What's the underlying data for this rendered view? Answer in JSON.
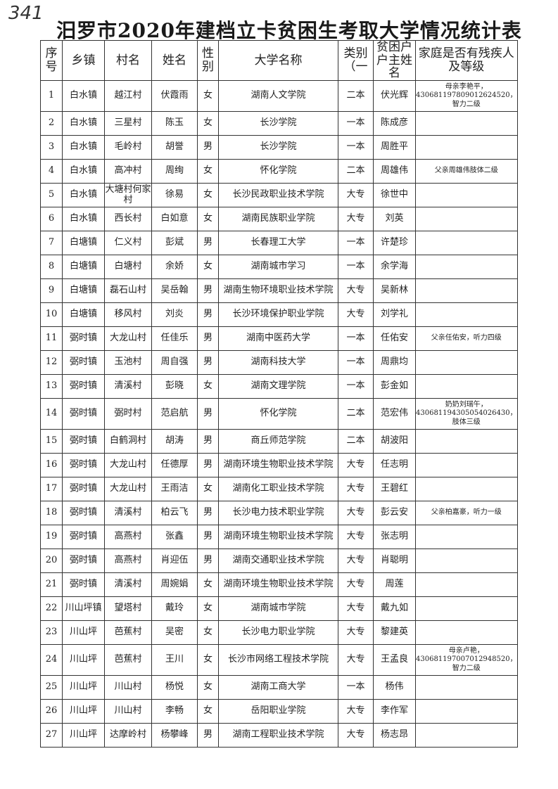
{
  "handwritten_page_no": "341",
  "title": "汨罗市2020年建档立卡贫困生考取大学情况统计表",
  "headers": [
    "序号",
    "乡镇",
    "村名",
    "姓名",
    "性别",
    "大学名称",
    "类别（一",
    "贫困户户主姓名",
    "家庭是否有残疾人及等级"
  ],
  "rows": [
    [
      "1",
      "白水镇",
      "越江村",
      "伏霞雨",
      "女",
      "湖南人文学院",
      "二本",
      "伏光辉",
      "母亲李艳平，430681197809012624520，智力二级"
    ],
    [
      "2",
      "白水镇",
      "三星村",
      "陈玉",
      "女",
      "长沙学院",
      "一本",
      "陈成彦",
      ""
    ],
    [
      "3",
      "白水镇",
      "毛岭村",
      "胡誉",
      "男",
      "长沙学院",
      "一本",
      "周胜平",
      ""
    ],
    [
      "4",
      "白水镇",
      "高冲村",
      "周绚",
      "女",
      "怀化学院",
      "二本",
      "周雄伟",
      "父亲周雄伟肢体二级"
    ],
    [
      "5",
      "白水镇",
      "大塘村何家村",
      "徐易",
      "女",
      "长沙民政职业技术学院",
      "大专",
      "徐世中",
      ""
    ],
    [
      "6",
      "白水镇",
      "西长村",
      "白如意",
      "女",
      "湖南民族职业学院",
      "大专",
      "刘英",
      ""
    ],
    [
      "7",
      "白塘镇",
      "仁义村",
      "彭斌",
      "男",
      "长春理工大学",
      "一本",
      "许楚珍",
      ""
    ],
    [
      "8",
      "白塘镇",
      "白塘村",
      "余娇",
      "女",
      "湖南城市学习",
      "一本",
      "余学海",
      ""
    ],
    [
      "9",
      "白塘镇",
      "磊石山村",
      "吴岳翰",
      "男",
      "湖南生物环境职业技术学院",
      "大专",
      "吴新林",
      ""
    ],
    [
      "10",
      "白塘镇",
      "移风村",
      "刘炎",
      "男",
      "长沙环境保护职业学院",
      "大专",
      "刘学礼",
      ""
    ],
    [
      "11",
      "弼时镇",
      "大龙山村",
      "任佳乐",
      "男",
      "湖南中医药大学",
      "一本",
      "任佑安",
      "父亲任佑安，听力四级"
    ],
    [
      "12",
      "弼时镇",
      "玉池村",
      "周自强",
      "男",
      "湖南科技大学",
      "一本",
      "周鼎均",
      ""
    ],
    [
      "13",
      "弼时镇",
      "清溪村",
      "彭晓",
      "女",
      "湖南文理学院",
      "一本",
      "彭金如",
      ""
    ],
    [
      "14",
      "弼时镇",
      "弼时村",
      "范启航",
      "男",
      "怀化学院",
      "二本",
      "范宏伟",
      "奶奶刘瑞午，430681194305054026430，肢体三级"
    ],
    [
      "15",
      "弼时镇",
      "白鹤洞村",
      "胡涛",
      "男",
      "商丘师范学院",
      "二本",
      "胡波阳",
      ""
    ],
    [
      "16",
      "弼时镇",
      "大龙山村",
      "任德厚",
      "男",
      "湖南环境生物职业技术学院",
      "大专",
      "任志明",
      ""
    ],
    [
      "17",
      "弼时镇",
      "大龙山村",
      "王雨洁",
      "女",
      "湖南化工职业技术学院",
      "大专",
      "王碧红",
      ""
    ],
    [
      "18",
      "弼时镇",
      "清溪村",
      "柏云飞",
      "男",
      "长沙电力技术职业学院",
      "大专",
      "彭云安",
      "父亲柏嘉豪，听力一级"
    ],
    [
      "19",
      "弼时镇",
      "高燕村",
      "张鑫",
      "男",
      "湖南环境生物职业技术学院",
      "大专",
      "张志明",
      ""
    ],
    [
      "20",
      "弼时镇",
      "高燕村",
      "肖迎伍",
      "男",
      "湖南交通职业技术学院",
      "大专",
      "肖聪明",
      ""
    ],
    [
      "21",
      "弼时镇",
      "清溪村",
      "周婉娟",
      "女",
      "湖南环境生物职业技术学院",
      "大专",
      "周莲",
      ""
    ],
    [
      "22",
      "川山坪镇",
      "望塔村",
      "戴玲",
      "女",
      "湖南城市学院",
      "大专",
      "戴九如",
      ""
    ],
    [
      "23",
      "川山坪",
      "芭蕉村",
      "吴密",
      "女",
      "长沙电力职业学院",
      "大专",
      "黎建英",
      ""
    ],
    [
      "24",
      "川山坪",
      "芭蕉村",
      "王川",
      "女",
      "长沙市网络工程技术学院",
      "大专",
      "王孟良",
      "母亲卢艳，430681197007012948520，智力二级"
    ],
    [
      "25",
      "川山坪",
      "川山村",
      "杨悦",
      "女",
      "湖南工商大学",
      "一本",
      "杨伟",
      ""
    ],
    [
      "26",
      "川山坪",
      "川山村",
      "李畅",
      "女",
      "岳阳职业学院",
      "大专",
      "李作军",
      ""
    ],
    [
      "27",
      "川山坪",
      "达摩岭村",
      "杨攀峰",
      "男",
      "湖南工程职业技术学院",
      "大专",
      "杨志昂",
      ""
    ]
  ]
}
